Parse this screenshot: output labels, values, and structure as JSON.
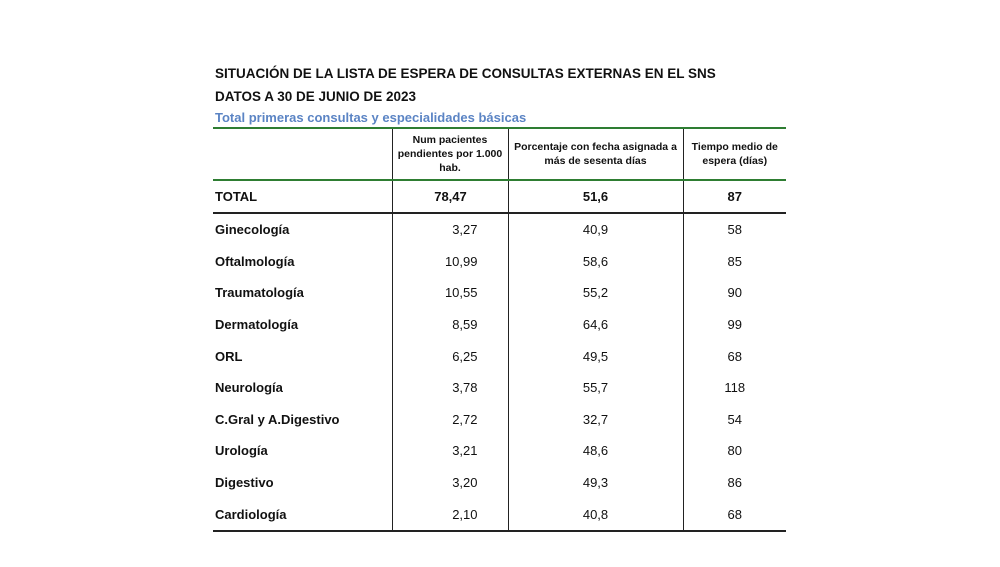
{
  "header": {
    "title_line1": "SITUACIÓN DE LA LISTA DE ESPERA  DE CONSULTAS EXTERNAS EN EL SNS",
    "title_line2": "DATOS A 30 DE JUNIO DE 2023",
    "subtitle": "Total primeras consultas y especialidades básicas",
    "subtitle_color": "#5b84c4",
    "rule_color": "#2e7d32"
  },
  "table": {
    "columns": [
      "",
      "Num pacientes pendientes por 1.000 hab.",
      "Porcentaje con fecha asignada a más de sesenta días",
      "Tiempo medio de espera (días)"
    ],
    "total": {
      "label": "TOTAL",
      "pacientes": "78,47",
      "porcentaje": "51,6",
      "tiempo": "87"
    },
    "rows": [
      {
        "label": "Ginecología",
        "pacientes": "3,27",
        "porcentaje": "40,9",
        "tiempo": "58"
      },
      {
        "label": "Oftalmología",
        "pacientes": "10,99",
        "porcentaje": "58,6",
        "tiempo": "85"
      },
      {
        "label": "Traumatología",
        "pacientes": "10,55",
        "porcentaje": "55,2",
        "tiempo": "90"
      },
      {
        "label": "Dermatología",
        "pacientes": "8,59",
        "porcentaje": "64,6",
        "tiempo": "99"
      },
      {
        "label": "ORL",
        "pacientes": "6,25",
        "porcentaje": "49,5",
        "tiempo": "68"
      },
      {
        "label": "Neurología",
        "pacientes": "3,78",
        "porcentaje": "55,7",
        "tiempo": "118"
      },
      {
        "label": "C.Gral y A.Digestivo",
        "pacientes": "2,72",
        "porcentaje": "32,7",
        "tiempo": "54"
      },
      {
        "label": "Urología",
        "pacientes": "3,21",
        "porcentaje": "48,6",
        "tiempo": "80"
      },
      {
        "label": "Digestivo",
        "pacientes": "3,20",
        "porcentaje": "49,3",
        "tiempo": "86"
      },
      {
        "label": "Cardiología",
        "pacientes": "2,10",
        "porcentaje": "40,8",
        "tiempo": "68"
      }
    ]
  }
}
